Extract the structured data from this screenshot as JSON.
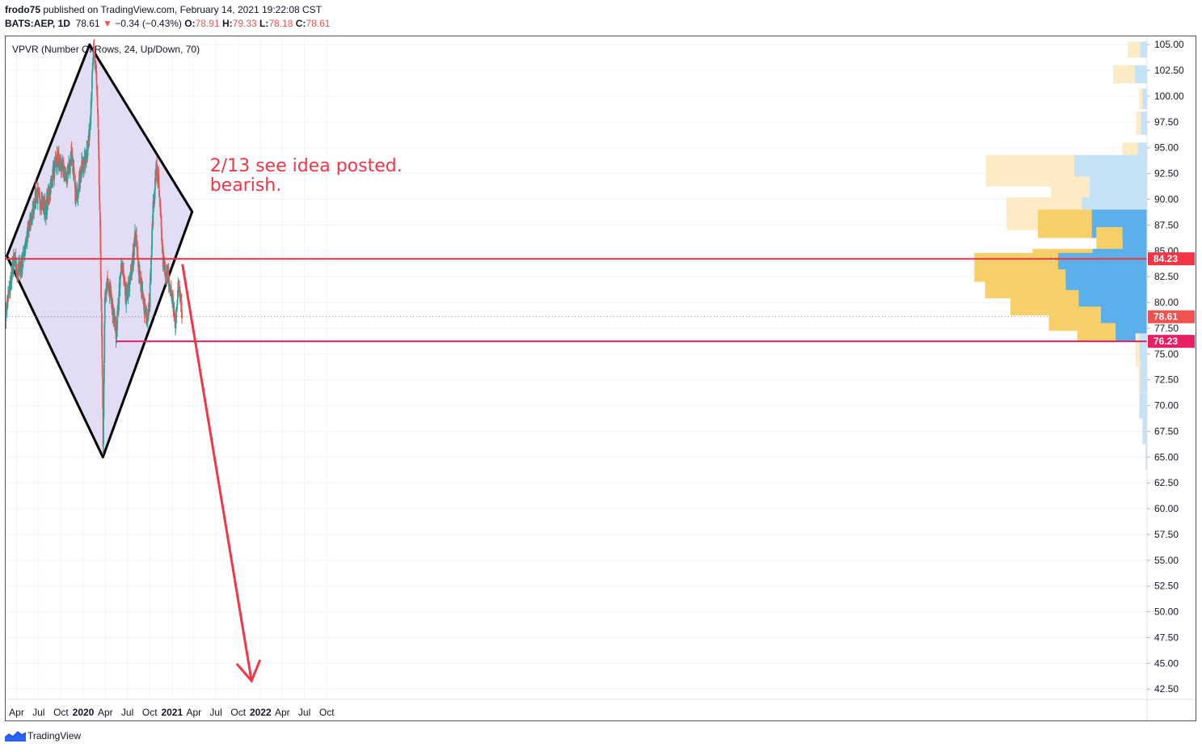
{
  "header": {
    "user": "frodo75",
    "published": "published on TradingView.com, February 14, 2021 19:22:08 CST",
    "symbol": "BATS:AEP, 1D",
    "last": "78.61",
    "change": "−0.34 (−0.43%)",
    "o_label": "O:",
    "o_val": "78.91",
    "h_label": "H:",
    "h_val": "79.33",
    "l_label": "L:",
    "l_val": "78.18",
    "c_label": "C:",
    "c_val": "78.61"
  },
  "footer": {
    "brand": "TradingView"
  },
  "colors": {
    "up": "#26a69a",
    "down": "#ef5350",
    "diamond_fill": "#e2dcf4",
    "hline_red": "#f23645",
    "hline_pink": "#e91e63",
    "annotation": "#f23645",
    "vp_up": "#5bb0eb",
    "vp_down": "#f8d06a",
    "vp_up_light": "#c6e2f6",
    "vp_down_light": "#fdebc6"
  },
  "chart_data": {
    "type": "candlestick",
    "indicator_label": "VPVR (Number Of Rows, 24, Up/Down, 70)",
    "y_ticks": [
      "42.50",
      "45.00",
      "47.50",
      "50.00",
      "52.50",
      "55.00",
      "57.50",
      "60.00",
      "62.50",
      "65.00",
      "67.50",
      "70.00",
      "72.50",
      "75.00",
      "77.50",
      "80.00",
      "82.50",
      "85.00",
      "87.50",
      "90.00",
      "92.50",
      "95.00",
      "97.50",
      "100.00",
      "102.50",
      "105.00"
    ],
    "ylim": [
      41.5,
      105.8
    ],
    "x_ticks": [
      {
        "label": "Apr",
        "d": "2019-04-01",
        "bold": false
      },
      {
        "label": "Jul",
        "d": "2019-07-01",
        "bold": false
      },
      {
        "label": "Oct",
        "d": "2019-10-01",
        "bold": false
      },
      {
        "label": "2020",
        "d": "2020-01-01",
        "bold": true
      },
      {
        "label": "Apr",
        "d": "2020-04-01",
        "bold": false
      },
      {
        "label": "Jul",
        "d": "2020-07-01",
        "bold": false
      },
      {
        "label": "Oct",
        "d": "2020-10-01",
        "bold": false
      },
      {
        "label": "2021",
        "d": "2021-01-01",
        "bold": true
      },
      {
        "label": "Apr",
        "d": "2021-04-01",
        "bold": false
      },
      {
        "label": "Jul",
        "d": "2021-07-01",
        "bold": false
      },
      {
        "label": "Oct",
        "d": "2021-10-01",
        "bold": false
      },
      {
        "label": "2022",
        "d": "2022-01-01",
        "bold": true
      },
      {
        "label": "Apr",
        "d": "2022-04-01",
        "bold": false
      },
      {
        "label": "Jul",
        "d": "2022-07-01",
        "bold": false
      },
      {
        "label": "Oct",
        "d": "2022-10-01",
        "bold": false
      }
    ],
    "price_path": [
      [
        "2019-02-15",
        79
      ],
      [
        "2019-03-01",
        81
      ],
      [
        "2019-03-20",
        84
      ],
      [
        "2019-04-05",
        83
      ],
      [
        "2019-04-20",
        83.5
      ],
      [
        "2019-05-10",
        86
      ],
      [
        "2019-06-01",
        88
      ],
      [
        "2019-06-20",
        90.5
      ],
      [
        "2019-07-10",
        90
      ],
      [
        "2019-07-30",
        89
      ],
      [
        "2019-08-20",
        91.5
      ],
      [
        "2019-09-15",
        94
      ],
      [
        "2019-10-05",
        93
      ],
      [
        "2019-10-25",
        92
      ],
      [
        "2019-11-15",
        94.5
      ],
      [
        "2019-12-01",
        90
      ],
      [
        "2019-12-20",
        92.5
      ],
      [
        "2020-01-10",
        94
      ],
      [
        "2020-01-25",
        96
      ],
      [
        "2020-02-12",
        104
      ],
      [
        "2020-02-22",
        103
      ],
      [
        "2020-03-01",
        98
      ],
      [
        "2020-03-12",
        85
      ],
      [
        "2020-03-20",
        72
      ],
      [
        "2020-03-23",
        66.5
      ],
      [
        "2020-03-30",
        80
      ],
      [
        "2020-04-10",
        82
      ],
      [
        "2020-04-20",
        81
      ],
      [
        "2020-05-05",
        79
      ],
      [
        "2020-05-15",
        77
      ],
      [
        "2020-06-01",
        82
      ],
      [
        "2020-06-10",
        84
      ],
      [
        "2020-06-25",
        80.5
      ],
      [
        "2020-07-10",
        81.5
      ],
      [
        "2020-07-25",
        84.5
      ],
      [
        "2020-08-05",
        87
      ],
      [
        "2020-08-20",
        82.5
      ],
      [
        "2020-09-05",
        80
      ],
      [
        "2020-09-20",
        78.5
      ],
      [
        "2020-10-01",
        80.5
      ],
      [
        "2020-10-15",
        89
      ],
      [
        "2020-10-28",
        93
      ],
      [
        "2020-11-05",
        92
      ],
      [
        "2020-11-15",
        88
      ],
      [
        "2020-11-25",
        84
      ],
      [
        "2020-12-05",
        83
      ],
      [
        "2020-12-20",
        82
      ],
      [
        "2021-01-05",
        80
      ],
      [
        "2021-01-15",
        77.5
      ],
      [
        "2021-01-25",
        81.5
      ],
      [
        "2021-02-05",
        81
      ],
      [
        "2021-02-12",
        78.61
      ]
    ],
    "last_price": 78.61,
    "last_price_label": "78.61",
    "diamond": [
      [
        "2019-02-20",
        84.5
      ],
      [
        "2020-01-27",
        105
      ],
      [
        "2021-03-25",
        88.8
      ],
      [
        "2020-03-22",
        65
      ]
    ],
    "hline_red": {
      "value": 84.23,
      "label": "84.23",
      "x_from": "2019-02-10"
    },
    "hline_pink": {
      "value": 76.23,
      "label": "76.23",
      "x_from": "2020-05-14"
    },
    "arrow": {
      "from": [
        "2021-02-13",
        83.7
      ],
      "to": [
        "2021-11-25",
        43.3
      ]
    },
    "annotation": [
      "2/13 see idea posted.",
      "bearish."
    ],
    "volume_profile": [
      {
        "lo": 103.75,
        "hi": 105.3,
        "up": 9,
        "down": 16,
        "light": true
      },
      {
        "lo": 101.25,
        "hi": 103.0,
        "up": 16,
        "down": 28,
        "light": true
      },
      {
        "lo": 98.75,
        "hi": 100.75,
        "up": 6,
        "down": 4,
        "light": true
      },
      {
        "lo": 96.25,
        "hi": 98.5,
        "up": 8,
        "down": 6,
        "light": true
      },
      {
        "lo": 93.75,
        "hi": 95.5,
        "up": 12,
        "down": 20,
        "light": true
      },
      {
        "lo": 91.25,
        "hi": 94.3,
        "up": 95,
        "down": 115,
        "light": true
      },
      {
        "lo": 88.75,
        "hi": 92.2,
        "up": 75,
        "down": 50,
        "light": true
      },
      {
        "lo": 87.0,
        "hi": 90.2,
        "up": 85,
        "down": 98,
        "light": true
      },
      {
        "lo": 86.25,
        "hi": 89.0,
        "up": 72,
        "down": 70,
        "light": false
      },
      {
        "lo": 83.75,
        "hi": 87.3,
        "up": 32,
        "down": 34,
        "light": false
      },
      {
        "lo": 82.8,
        "hi": 85.2,
        "up": 71,
        "down": 78,
        "light": false
      },
      {
        "lo": 82.0,
        "hi": 84.8,
        "up": 116,
        "down": 109,
        "light": false
      },
      {
        "lo": 80.4,
        "hi": 83.2,
        "up": 106,
        "down": 105,
        "light": false
      },
      {
        "lo": 78.75,
        "hi": 81.2,
        "up": 89,
        "down": 89,
        "light": false
      },
      {
        "lo": 77.25,
        "hi": 79.6,
        "up": 60,
        "down": 68,
        "light": false
      },
      {
        "lo": 76.25,
        "hi": 78.0,
        "up": 41,
        "down": 50,
        "light": false
      },
      {
        "lo": 73.75,
        "hi": 77.0,
        "up": 10,
        "down": 5,
        "light": true
      },
      {
        "lo": 71.25,
        "hi": 74.5,
        "up": 9,
        "down": 2,
        "light": true
      },
      {
        "lo": 68.75,
        "hi": 71.2,
        "up": 10,
        "down": 0,
        "light": true
      },
      {
        "lo": 66.25,
        "hi": 68.75,
        "up": 6,
        "down": 0,
        "light": true
      },
      {
        "lo": 63.75,
        "hi": 66.25,
        "up": 2,
        "down": 0,
        "light": true
      }
    ]
  }
}
